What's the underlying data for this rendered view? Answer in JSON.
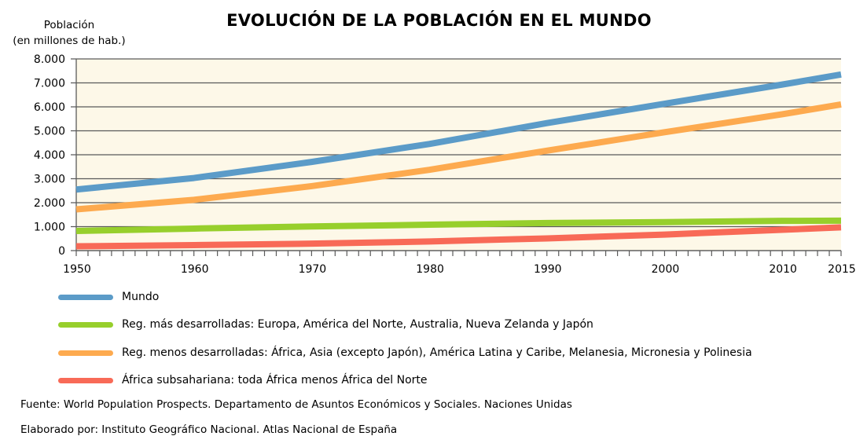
{
  "chart_data": {
    "type": "line",
    "title": "EVOLUCIÓN DE LA POBLACIÓN EN EL MUNDO",
    "ylabel_lines": [
      "Población",
      "(en millones de hab.)"
    ],
    "xlabel": "",
    "x": [
      1950,
      1960,
      1970,
      1980,
      1990,
      2000,
      2010,
      2015
    ],
    "xlim": [
      1950,
      2015
    ],
    "ylim": [
      0,
      8000
    ],
    "yticks": [
      0,
      1000,
      2000,
      3000,
      4000,
      5000,
      6000,
      7000,
      8000
    ],
    "ytick_labels": [
      "0",
      "1.000",
      "2.000",
      "3.000",
      "4.000",
      "5.000",
      "6.000",
      "7.000",
      "8.000"
    ],
    "xticks": [
      1950,
      1960,
      1970,
      1980,
      1990,
      2000,
      2010,
      2015
    ],
    "xtick_labels": [
      "1950",
      "1960",
      "1970",
      "1980",
      "1990",
      "2000",
      "2010",
      "2015"
    ],
    "minor_xtick_step": 1,
    "grid": "horizontal",
    "plot_background": "#fdf8e8",
    "legend_position": "bottom",
    "series": [
      {
        "name": "Mundo",
        "color": "#5b9bc8",
        "values": [
          2550,
          3030,
          3700,
          4450,
          5320,
          6130,
          6930,
          7350
        ]
      },
      {
        "name": "Reg. más desarrolladas: Europa, América del Norte, Australia, Nueva Zelanda y Japón",
        "color": "#97cf2c",
        "values": [
          820,
          920,
          1010,
          1080,
          1150,
          1190,
          1240,
          1250
        ]
      },
      {
        "name": "Reg. menos desarrolladas: África, Asia (excepto Japón), América Latina y Caribe, Melanesia, Micronesia y Polinesia",
        "color": "#fdaa4f",
        "values": [
          1720,
          2120,
          2690,
          3370,
          4170,
          4940,
          5690,
          6100
        ]
      },
      {
        "name": "África subsahariana: toda África menos África del Norte",
        "color": "#f86a57",
        "values": [
          180,
          230,
          290,
          380,
          510,
          670,
          870,
          970
        ]
      }
    ]
  },
  "footer": {
    "source": "Fuente: World Population Prospects. Departamento de Asuntos Económicos y Sociales. Naciones Unidas",
    "credit": "Elaborado por: Instituto Geográfico Nacional. Atlas Nacional de España"
  }
}
